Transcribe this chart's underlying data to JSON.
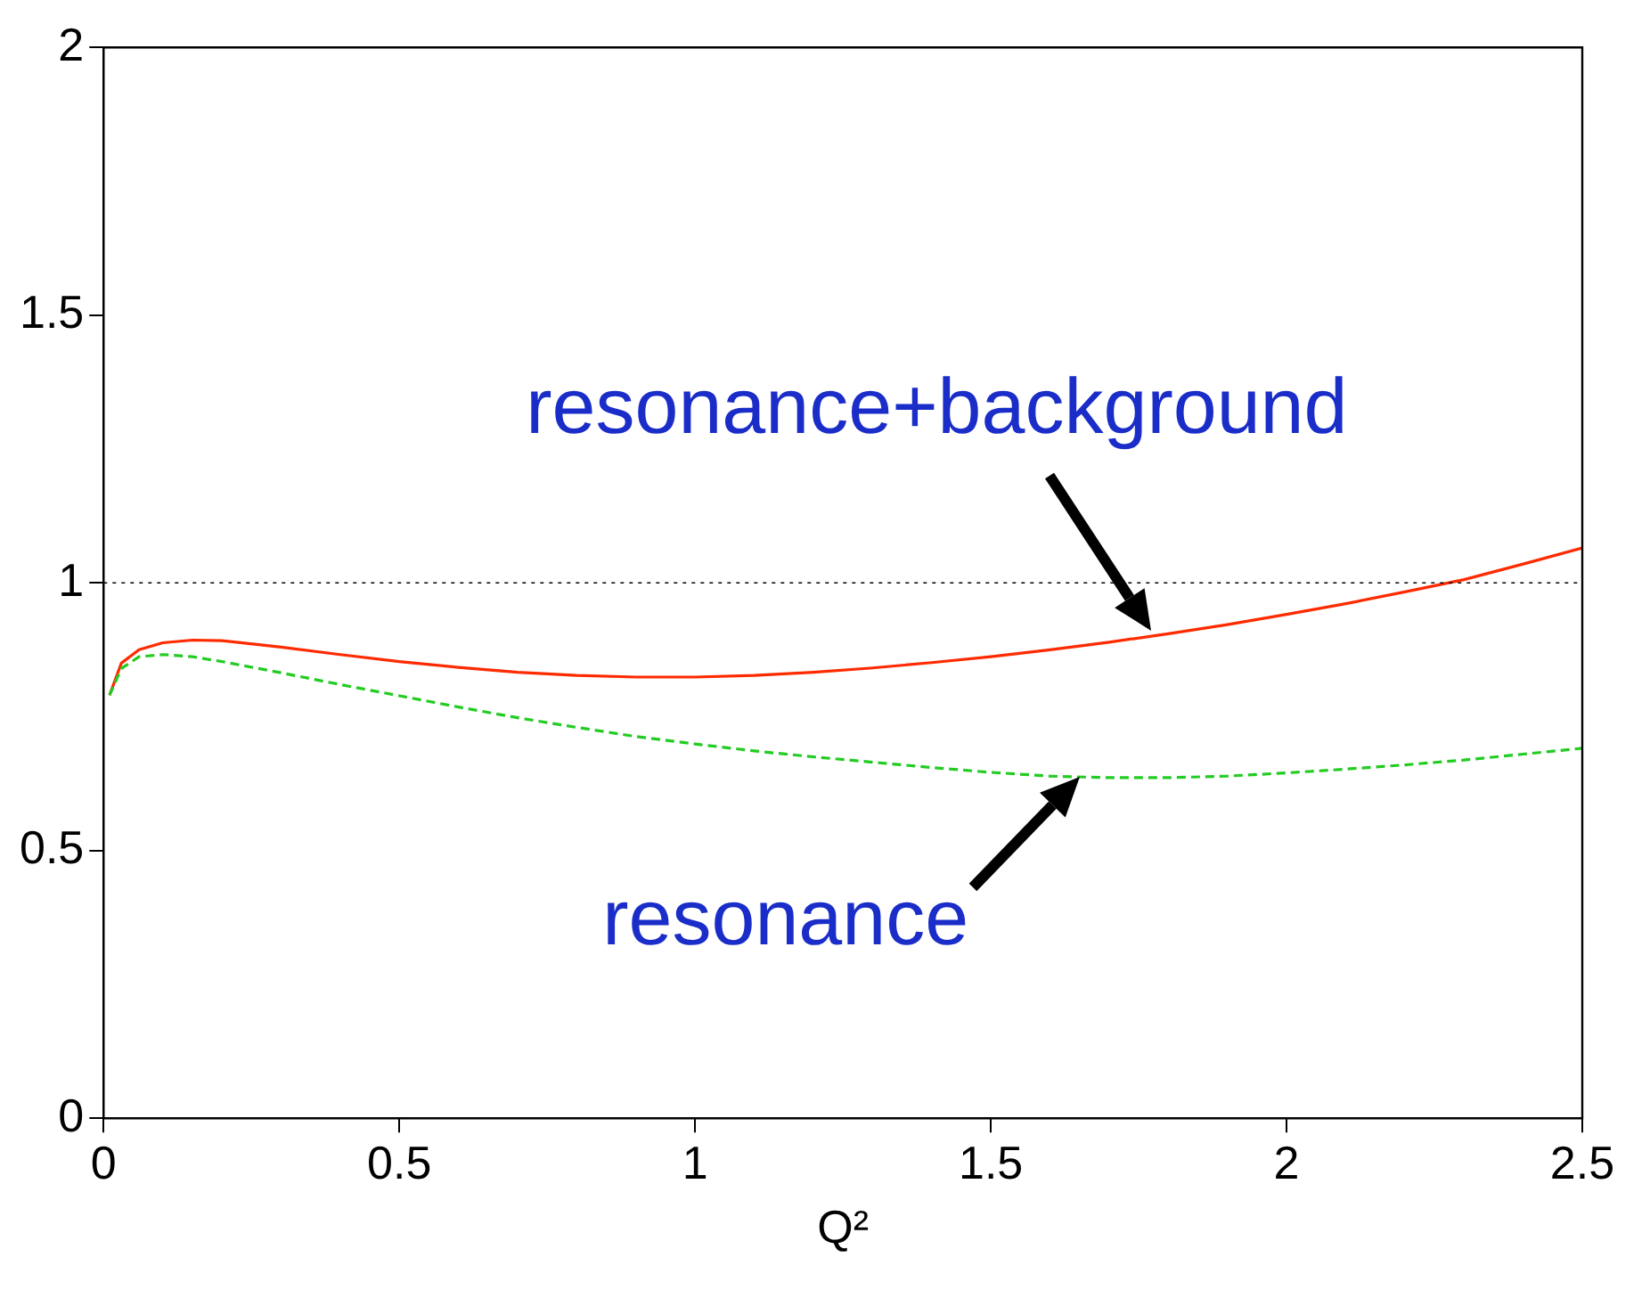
{
  "chart_data": {
    "type": "line",
    "xlabel": "Q²",
    "xlim": [
      0,
      2.5
    ],
    "ylim": [
      0,
      2
    ],
    "xticks": [
      0,
      0.5,
      1,
      1.5,
      2,
      2.5
    ],
    "yticks": [
      0,
      0.5,
      1,
      1.5,
      2
    ],
    "grid": false,
    "legend": false,
    "marker": "none",
    "x": [
      0.01,
      0.03,
      0.06,
      0.1,
      0.15,
      0.2,
      0.3,
      0.4,
      0.5,
      0.6,
      0.7,
      0.8,
      0.9,
      1.0,
      1.1,
      1.2,
      1.3,
      1.4,
      1.5,
      1.6,
      1.7,
      1.8,
      1.9,
      2.0,
      2.1,
      2.2,
      2.3,
      2.4,
      2.5
    ],
    "series": [
      {
        "type": "line",
        "color": "#ff2a00",
        "line_style": "solid",
        "values": [
          0.79,
          0.85,
          0.875,
          0.888,
          0.893,
          0.892,
          0.88,
          0.866,
          0.853,
          0.842,
          0.833,
          0.827,
          0.824,
          0.824,
          0.827,
          0.833,
          0.841,
          0.851,
          0.862,
          0.875,
          0.889,
          0.905,
          0.922,
          0.941,
          0.961,
          0.983,
          1.006,
          1.035,
          1.065
        ]
      },
      {
        "type": "line",
        "color": "#22cc22",
        "line_style": "dashed",
        "values": [
          0.79,
          0.84,
          0.862,
          0.866,
          0.862,
          0.853,
          0.832,
          0.81,
          0.789,
          0.768,
          0.748,
          0.73,
          0.713,
          0.699,
          0.686,
          0.675,
          0.665,
          0.655,
          0.646,
          0.639,
          0.636,
          0.636,
          0.639,
          0.645,
          0.652,
          0.66,
          0.669,
          0.68,
          0.691
        ]
      }
    ],
    "ref_lines": [
      {
        "axis": "y",
        "value": 1,
        "color": "#000000",
        "line_style": "dotted"
      }
    ],
    "annotations": [
      {
        "text": "resonance+background",
        "x": 1.77,
        "y": 0.91
      },
      {
        "text": "resonance",
        "x": 1.65,
        "y": 0.636
      }
    ]
  }
}
